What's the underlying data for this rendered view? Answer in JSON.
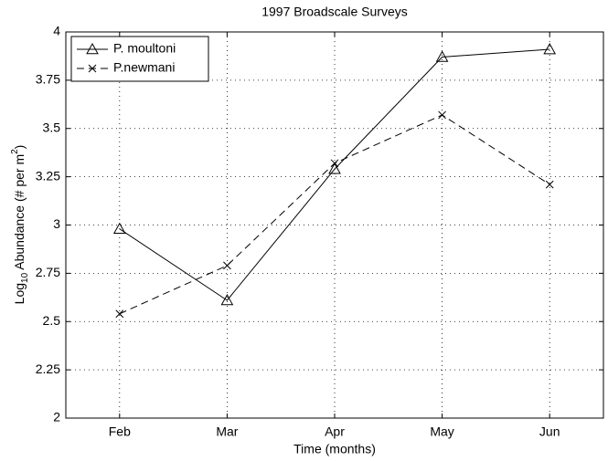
{
  "chart_data": {
    "type": "line",
    "title": "1997 Broadscale Surveys",
    "xlabel": "Time  (months)",
    "ylabel_parts": [
      "Log",
      "10",
      " Abundance (# per m",
      "2",
      ")"
    ],
    "categories": [
      "Feb",
      "Mar",
      "Apr",
      "May",
      "Jun"
    ],
    "series": [
      {
        "name": "P. moultoni",
        "color": "#000000",
        "linestyle": "solid",
        "marker": "triangle",
        "values": [
          2.98,
          2.61,
          3.29,
          3.87,
          3.91
        ]
      },
      {
        "name": "P.newmani",
        "color": "#000000",
        "linestyle": "dashed",
        "marker": "x",
        "values": [
          2.54,
          2.79,
          3.32,
          3.57,
          3.21
        ]
      }
    ],
    "ylim": [
      2,
      4
    ],
    "yticks": [
      2,
      2.25,
      2.5,
      2.75,
      3,
      3.25,
      3.5,
      3.75,
      4
    ],
    "grid": true,
    "legend": "upper left"
  }
}
